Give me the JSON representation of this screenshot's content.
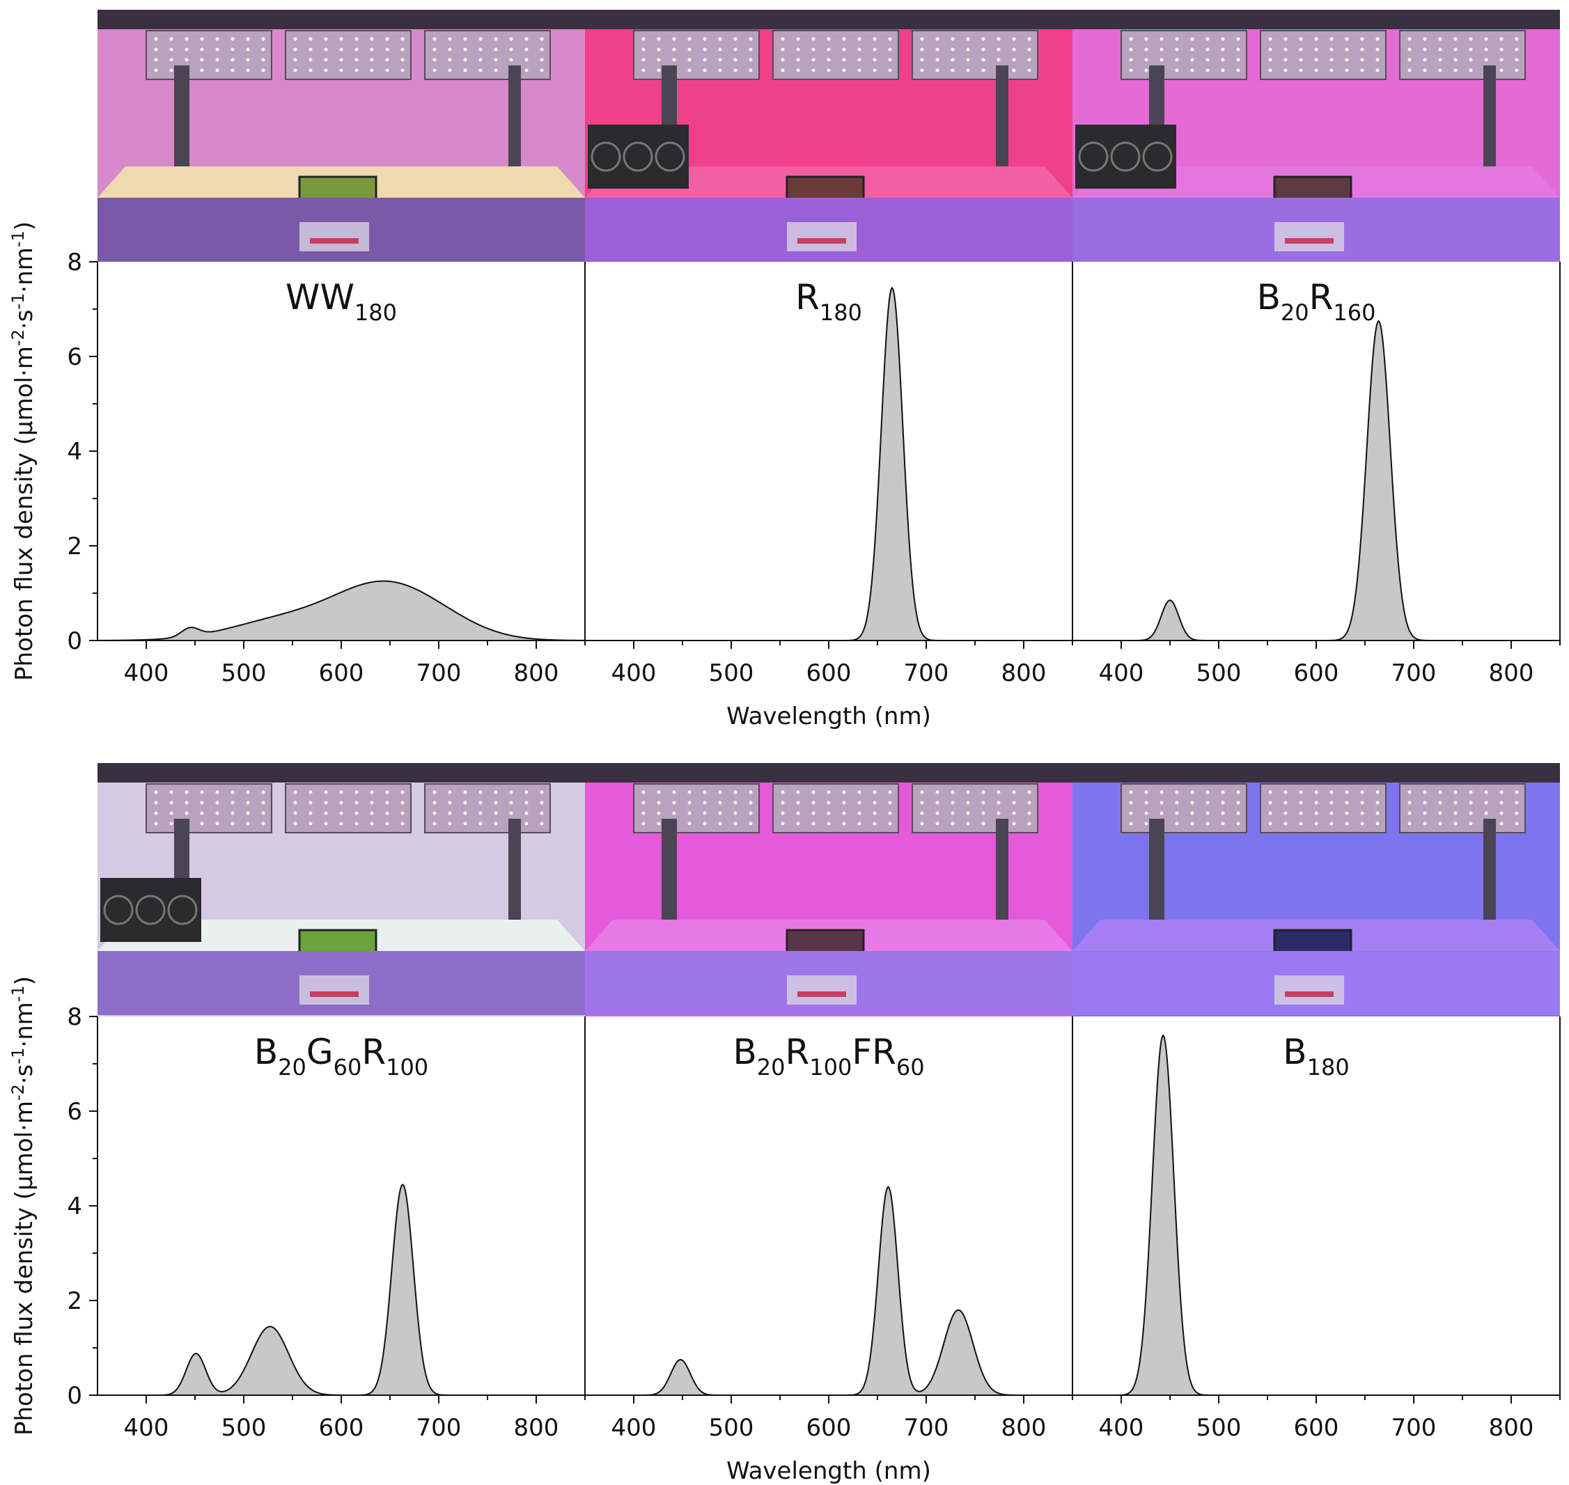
{
  "chart_data": {
    "type": "area",
    "x_axis": {
      "label": "Wavelength (nm)",
      "range": [
        350,
        850
      ],
      "ticks": [
        400,
        500,
        600,
        700,
        800
      ]
    },
    "y_axis": {
      "label_main": "Photon flux density (μmol·m",
      "label_sup1": "-2",
      "label_mid": "·s",
      "label_sup2": "-1",
      "label_mid2": "·nm",
      "label_sup3": "-1",
      "label_end": ")",
      "range": [
        0,
        8
      ],
      "ticks": [
        0,
        2,
        4,
        6,
        8
      ],
      "label_scientific": "Photon flux density (μmol·m-2·s-1·nm-1)"
    },
    "fill_color": "#c8c8c8",
    "line_color": "#111111",
    "panels": [
      {
        "label_parts": [
          {
            "t": "WW"
          },
          {
            "t": "180",
            "sub": true
          }
        ],
        "label": "WW180",
        "peaks": [
          {
            "center": 445,
            "height": 0.18,
            "width": 9
          },
          {
            "center": 540,
            "height": 0.42,
            "width": 55
          },
          {
            "center": 640,
            "height": 1.05,
            "width": 50
          },
          {
            "center": 700,
            "height": 0.3,
            "width": 45
          }
        ]
      },
      {
        "label_parts": [
          {
            "t": "R"
          },
          {
            "t": "180",
            "sub": true
          }
        ],
        "label": "R180",
        "peaks": [
          {
            "center": 665,
            "height": 7.45,
            "width": 11
          }
        ]
      },
      {
        "label_parts": [
          {
            "t": "B"
          },
          {
            "t": "20",
            "sub": true
          },
          {
            "t": "R"
          },
          {
            "t": "160",
            "sub": true
          }
        ],
        "label": "B20R160",
        "peaks": [
          {
            "center": 450,
            "height": 0.85,
            "width": 9
          },
          {
            "center": 664,
            "height": 6.75,
            "width": 12
          }
        ]
      },
      {
        "label_parts": [
          {
            "t": "B"
          },
          {
            "t": "20",
            "sub": true
          },
          {
            "t": "G"
          },
          {
            "t": "60",
            "sub": true
          },
          {
            "t": "R"
          },
          {
            "t": "100",
            "sub": true
          }
        ],
        "label": "B20G60R100",
        "peaks": [
          {
            "center": 451,
            "height": 0.88,
            "width": 10
          },
          {
            "center": 527,
            "height": 1.45,
            "width": 19
          },
          {
            "center": 663,
            "height": 4.45,
            "width": 11
          }
        ]
      },
      {
        "label_parts": [
          {
            "t": "B"
          },
          {
            "t": "20",
            "sub": true
          },
          {
            "t": "R"
          },
          {
            "t": "100",
            "sub": true
          },
          {
            "t": "FR"
          },
          {
            "t": "60",
            "sub": true
          }
        ],
        "label": "B20R100FR60",
        "peaks": [
          {
            "center": 448,
            "height": 0.75,
            "width": 10
          },
          {
            "center": 661,
            "height": 4.4,
            "width": 10
          },
          {
            "center": 733,
            "height": 1.8,
            "width": 15
          }
        ]
      },
      {
        "label_parts": [
          {
            "t": "B"
          },
          {
            "t": "180",
            "sub": true
          }
        ],
        "label": "B180",
        "peaks": [
          {
            "center": 443,
            "height": 7.6,
            "width": 11
          }
        ]
      }
    ],
    "photo_colors": [
      {
        "wall": "#d889c9",
        "bench": "#eed9b0",
        "tray": "#7a9a3a",
        "base": "#7a5aa8"
      },
      {
        "wall": "#f0408a",
        "bench": "#f25fa3",
        "tray": "#6d3a3a",
        "base": "#9a60d8"
      },
      {
        "wall": "#e46ad6",
        "bench": "#e576e0",
        "tray": "#5b3a42",
        "base": "#9a6ee2"
      },
      {
        "wall": "#d5cbe4",
        "bench": "#eaf0ee",
        "tray": "#6aa23c",
        "base": "#8c6ec8"
      },
      {
        "wall": "#e45ad8",
        "bench": "#e87ae8",
        "tray": "#5a3548",
        "base": "#a075ea"
      },
      {
        "wall": "#7e74ee",
        "bench": "#a480f4",
        "tray": "#2a2b66",
        "base": "#9a7af2"
      }
    ]
  }
}
